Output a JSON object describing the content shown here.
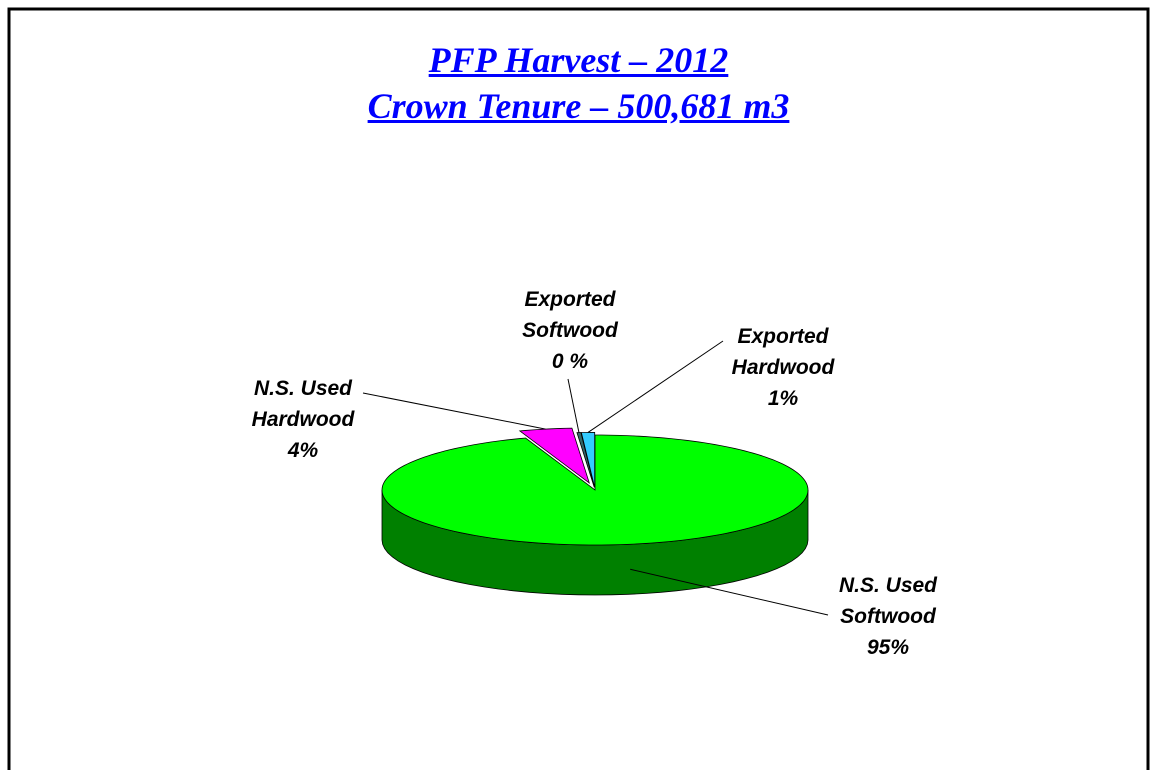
{
  "chart_data": {
    "type": "pie3d",
    "title": "PFP Harvest – 2012",
    "subtitle": "Crown Tenure – 500,681 m3",
    "categories": [
      "N.S. Used Softwood",
      "N.S. Used Hardwood",
      "Exported Softwood",
      "Exported Hardwood"
    ],
    "values": [
      95,
      4,
      0.3,
      1
    ],
    "value_labels": [
      "95%",
      "4%",
      "0 %",
      "1%"
    ],
    "colors": [
      "#00ff00",
      "#ff00ff",
      "#336666",
      "#33ccff"
    ]
  }
}
